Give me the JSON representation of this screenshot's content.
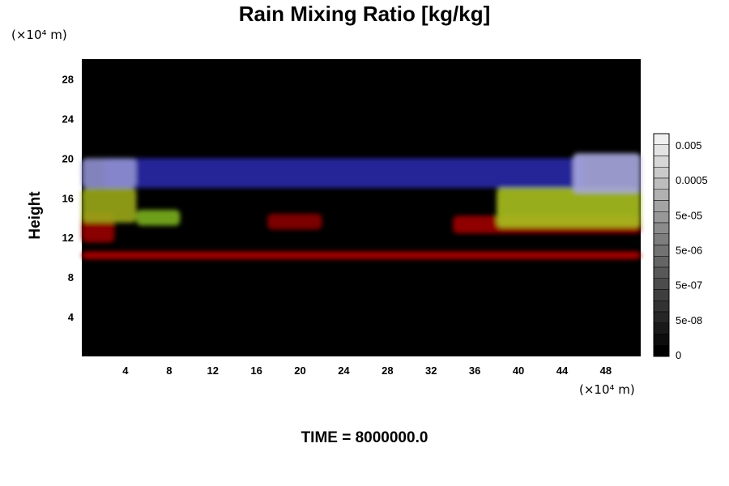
{
  "chart_data": {
    "type": "heatmap",
    "title": "Rain Mixing Ratio [kg/kg]",
    "ylabel": "Height",
    "xlabel": "",
    "x_unit": "(×10⁴ m)",
    "y_unit": "(×10⁴ m)",
    "xlim": [
      0,
      51.2
    ],
    "ylim": [
      0,
      30
    ],
    "x_ticks": [
      4,
      8,
      12,
      16,
      20,
      24,
      28,
      32,
      36,
      40,
      44,
      48
    ],
    "y_ticks": [
      4,
      8,
      12,
      16,
      20,
      24,
      28
    ],
    "colorbar": {
      "labels": [
        "0.005",
        "0.0005",
        "5e-05",
        "5e-06",
        "5e-07",
        "5e-08",
        "0"
      ]
    },
    "features": [
      {
        "color": "#b00000",
        "x": [
          0,
          51.2
        ],
        "y": [
          9.8,
          10.6
        ]
      },
      {
        "color": "#a00000",
        "x": [
          34,
          51.2
        ],
        "y": [
          12.4,
          14.2
        ]
      },
      {
        "color": "#9a0000",
        "x": [
          0,
          3
        ],
        "y": [
          11.5,
          14.5
        ]
      },
      {
        "color": "#8a0000",
        "x": [
          17,
          22
        ],
        "y": [
          12.8,
          14.4
        ]
      },
      {
        "color": "#9aa818",
        "x": [
          0,
          5
        ],
        "y": [
          13.5,
          17
        ]
      },
      {
        "color": "#7ab020",
        "x": [
          5,
          9
        ],
        "y": [
          13.2,
          14.8
        ]
      },
      {
        "color": "#a8c020",
        "x": [
          38,
          51.2
        ],
        "y": [
          13,
          17
        ]
      },
      {
        "color": "#2a2aa8",
        "x": [
          2,
          46
        ],
        "y": [
          17,
          20
        ]
      },
      {
        "color": "#9090d0",
        "x": [
          0,
          5
        ],
        "y": [
          17,
          20
        ]
      },
      {
        "color": "#a8a8e0",
        "x": [
          45,
          51.2
        ],
        "y": [
          16.5,
          20.5
        ]
      }
    ]
  },
  "footer": {
    "time_label": "TIME = 8000000.0"
  }
}
